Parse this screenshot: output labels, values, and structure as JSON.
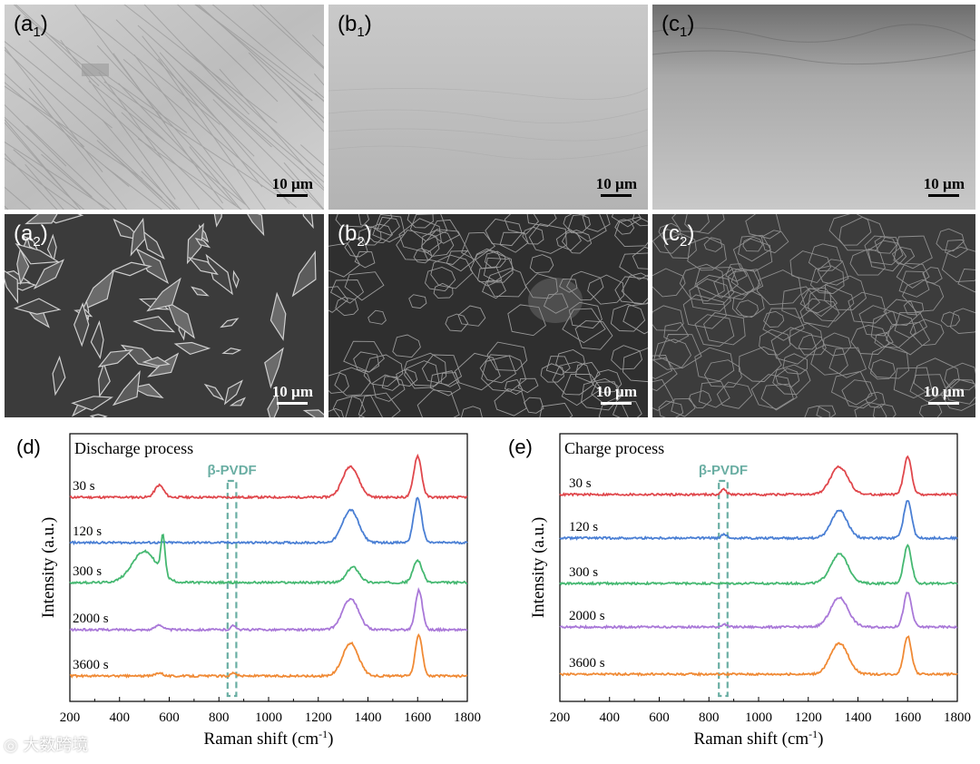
{
  "panels": [
    {
      "id": "a1",
      "letter": "a",
      "sub": "1",
      "scale": "10 µm",
      "tone": "light"
    },
    {
      "id": "b1",
      "letter": "b",
      "sub": "1",
      "scale": "10 µm",
      "tone": "light"
    },
    {
      "id": "c1",
      "letter": "c",
      "sub": "1",
      "scale": "10 µm",
      "tone": "light"
    },
    {
      "id": "a2",
      "letter": "a",
      "sub": "2",
      "scale": "10 µm",
      "tone": "dark"
    },
    {
      "id": "b2",
      "letter": "b",
      "sub": "2",
      "scale": "10 µm",
      "tone": "dark"
    },
    {
      "id": "c2",
      "letter": "c",
      "sub": "2",
      "scale": "10 µm",
      "tone": "dark"
    }
  ],
  "charts": [
    {
      "panel_label": "(d)",
      "title": "Discharge process",
      "annotation": "β-PVDF",
      "xlabel": "Raman shift (cm",
      "xlabel_sup": "-1",
      "xlabel_close": ")",
      "ylabel": "Intensity (a.u.)",
      "xticks": [
        "200",
        "400",
        "600",
        "800",
        "1000",
        "1200",
        "1400",
        "1600",
        "1800"
      ],
      "series_labels": [
        "30 s",
        "120 s",
        "300 s",
        "2000 s",
        "3600 s"
      ]
    },
    {
      "panel_label": "(e)",
      "title": "Charge process",
      "annotation": "β-PVDF",
      "xlabel": "Raman shift (cm",
      "xlabel_sup": "-1",
      "xlabel_close": ")",
      "ylabel": "Intensity (a.u.)",
      "xticks": [
        "200",
        "400",
        "600",
        "800",
        "1000",
        "1200",
        "1400",
        "1600",
        "1800"
      ],
      "series_labels": [
        "30 s",
        "120 s",
        "300 s",
        "2000 s",
        "3600 s"
      ]
    }
  ],
  "chart_data": [
    {
      "type": "line",
      "title": "Discharge process",
      "xlabel": "Raman shift (cm-1)",
      "ylabel": "Intensity (a.u.)",
      "xlim": [
        200,
        1800
      ],
      "highlight_band": [
        835,
        870
      ],
      "series": [
        {
          "name": "30 s",
          "color": "#e0474c",
          "peaks": [
            [
              560,
              0.35,
              25
            ],
            [
              1330,
              0.9,
              45
            ],
            [
              1600,
              1.2,
              22
            ]
          ]
        },
        {
          "name": "120 s",
          "color": "#4a7fd4",
          "peaks": [
            [
              1330,
              0.95,
              45
            ],
            [
              1600,
              1.3,
              22
            ]
          ]
        },
        {
          "name": "300 s",
          "color": "#45b871",
          "peaks": [
            [
              500,
              0.9,
              70
            ],
            [
              575,
              1.1,
              12
            ],
            [
              1340,
              0.45,
              35
            ],
            [
              1600,
              0.65,
              25
            ]
          ]
        },
        {
          "name": "2000 s",
          "color": "#a978d8",
          "peaks": [
            [
              560,
              0.15,
              20
            ],
            [
              860,
              0.12,
              15
            ],
            [
              1330,
              0.9,
              45
            ],
            [
              1605,
              1.15,
              20
            ]
          ]
        },
        {
          "name": "3600 s",
          "color": "#f08a35",
          "peaks": [
            [
              560,
              0.1,
              20
            ],
            [
              860,
              0.1,
              15
            ],
            [
              1330,
              0.95,
              45
            ],
            [
              1605,
              1.2,
              20
            ]
          ]
        }
      ]
    },
    {
      "type": "line",
      "title": "Charge process",
      "xlabel": "Raman shift (cm-1)",
      "ylabel": "Intensity (a.u.)",
      "xlim": [
        200,
        1800
      ],
      "highlight_band": [
        840,
        875
      ],
      "series": [
        {
          "name": "30 s",
          "color": "#e0474c",
          "peaks": [
            [
              860,
              0.15,
              15
            ],
            [
              1325,
              0.8,
              50
            ],
            [
              1600,
              1.1,
              22
            ]
          ]
        },
        {
          "name": "120 s",
          "color": "#4a7fd4",
          "peaks": [
            [
              860,
              0.1,
              15
            ],
            [
              1325,
              0.8,
              45
            ],
            [
              1600,
              1.1,
              22
            ]
          ]
        },
        {
          "name": "300 s",
          "color": "#45b871",
          "peaks": [
            [
              1325,
              0.85,
              50
            ],
            [
              1600,
              1.1,
              22
            ]
          ]
        },
        {
          "name": "2000 s",
          "color": "#a978d8",
          "peaks": [
            [
              860,
              0.08,
              15
            ],
            [
              1325,
              0.85,
              50
            ],
            [
              1600,
              1.0,
              22
            ]
          ]
        },
        {
          "name": "3600 s",
          "color": "#f08a35",
          "peaks": [
            [
              1325,
              0.9,
              50
            ],
            [
              1600,
              1.1,
              22
            ]
          ]
        }
      ]
    }
  ]
}
